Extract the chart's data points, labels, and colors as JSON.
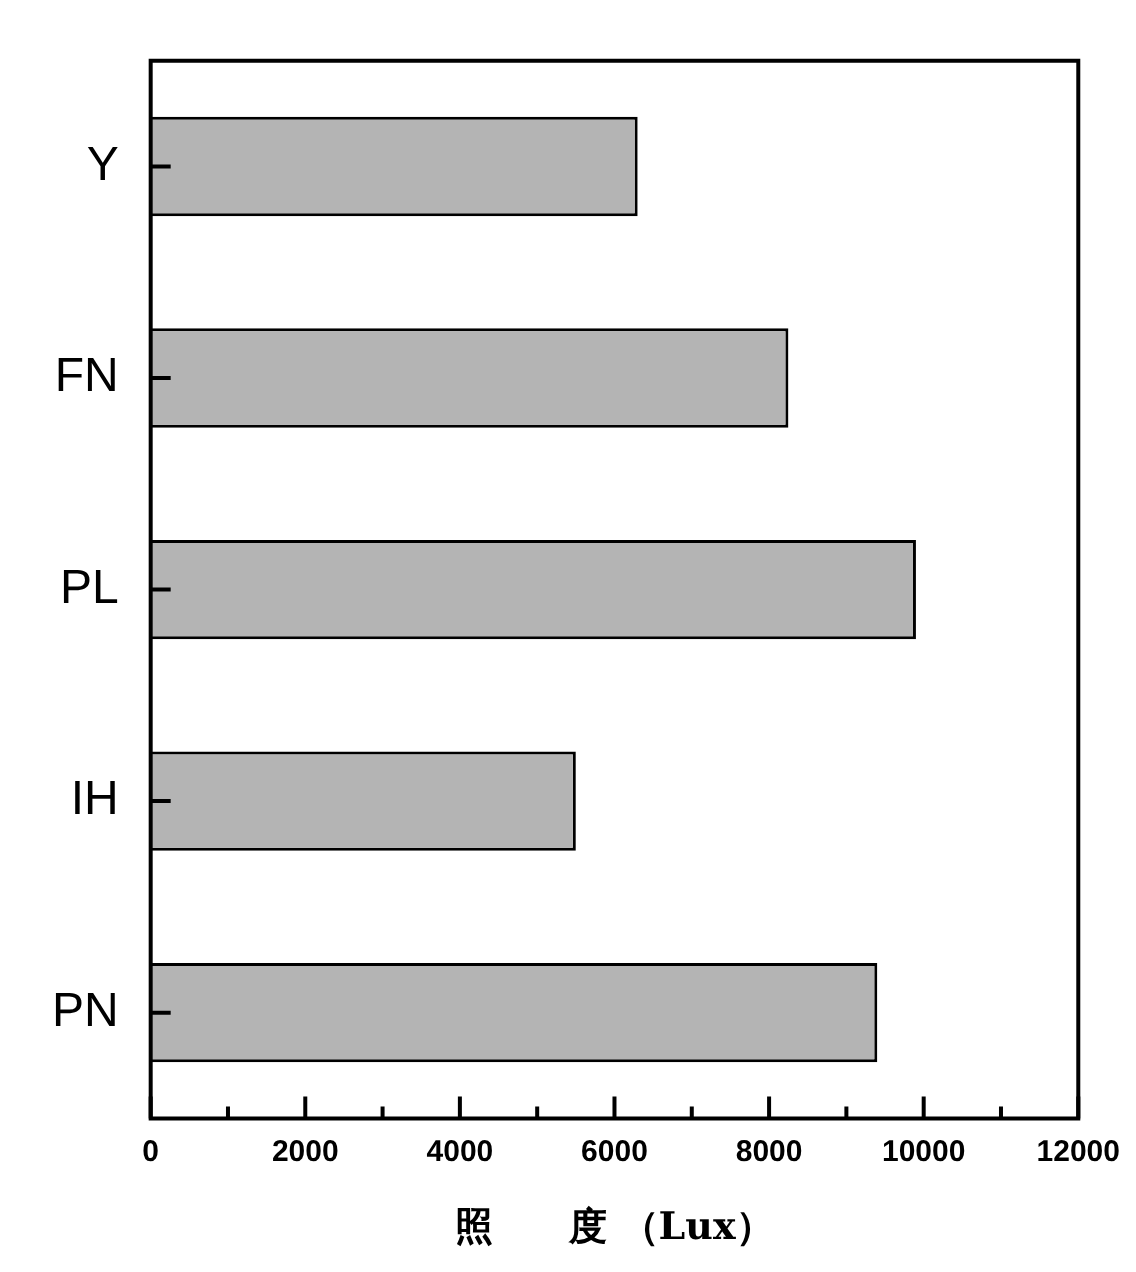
{
  "chart_data": {
    "type": "bar",
    "orientation": "horizontal",
    "xlabel": "照　　度 （Lux）",
    "categories": [
      "Y",
      "FN",
      "PL",
      "IH",
      "PN"
    ],
    "values": [
      6300,
      8250,
      9900,
      5500,
      9400
    ],
    "color": "#b4b4b4",
    "xlim": [
      0,
      12000
    ],
    "xticks": [
      0,
      {
        "value": 1000,
        "label": null
      },
      2000,
      {
        "value": 3000,
        "label": null
      },
      4000,
      {
        "value": 5000,
        "label": null
      },
      6000,
      {
        "value": 7000,
        "label": null
      },
      8000,
      {
        "value": 9000,
        "label": null
      },
      10000,
      {
        "value": 11000,
        "label": null
      },
      12000
    ],
    "grid": false,
    "legend": false
  }
}
